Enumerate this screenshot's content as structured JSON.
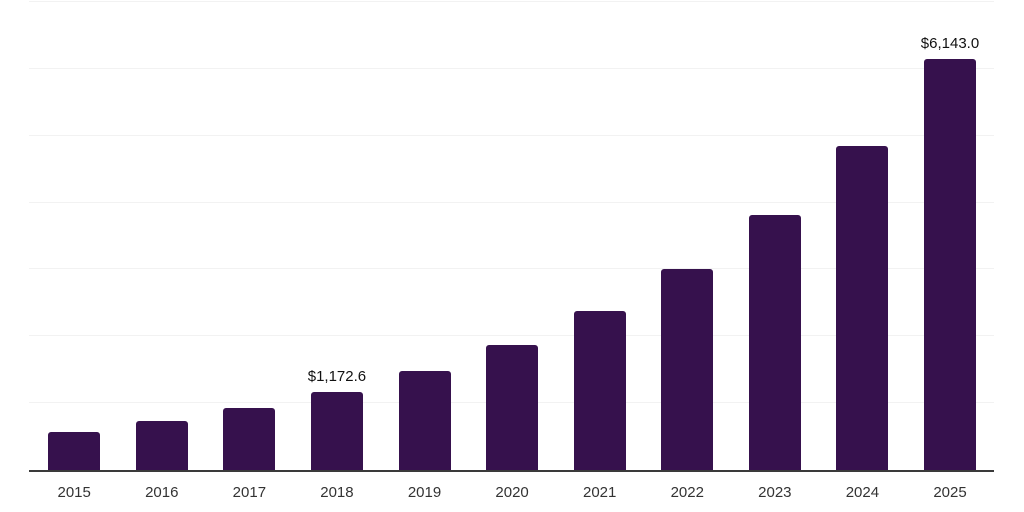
{
  "chart_data": {
    "type": "bar",
    "title": "",
    "xlabel": "",
    "ylabel": "",
    "categories": [
      "2015",
      "2016",
      "2017",
      "2018",
      "2019",
      "2020",
      "2021",
      "2022",
      "2023",
      "2024",
      "2025"
    ],
    "values": [
      575,
      740,
      935,
      1172.6,
      1485,
      1870,
      2380,
      3000,
      3810,
      4845,
      6143.0
    ],
    "value_labels": [
      "",
      "",
      "",
      "$1,172.6",
      "",
      "",
      "",
      "",
      "",
      "",
      "$6,143.0"
    ],
    "labeled_points": [
      {
        "category": "2018",
        "label": "$1,172.6"
      },
      {
        "category": "2025",
        "label": "$6,143.0"
      }
    ],
    "ylim": [
      0,
      7000
    ],
    "grid": true,
    "grid_step": 1000,
    "legend": false,
    "axis_ticks_y_visible": false
  },
  "colors": {
    "bar": "#36114d",
    "axis": "#3a3a3a",
    "gridline": "#f2f2f2",
    "tick_label": "#333333",
    "value_label": "#111111",
    "background": "#ffffff"
  }
}
